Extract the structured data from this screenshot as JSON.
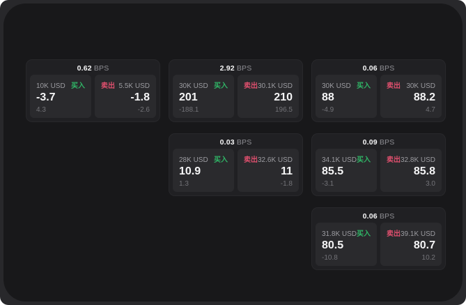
{
  "labels": {
    "bps_unit": "BPS",
    "buy": "买入",
    "sell": "卖出"
  },
  "colors": {
    "buy_green": "#30b566",
    "sell_red": "#dd4f6d",
    "surface_bg": "#18181a",
    "card_bg": "#202023",
    "panel_bg": "#2a2a2d",
    "value_text": "#f5f5f6",
    "muted_text": "#9b9ba0"
  },
  "cards": [
    {
      "row": 1,
      "col": 1,
      "bps": "0.62",
      "buy": {
        "notional": "10K USD",
        "value": "-3.7",
        "sub": "4.3"
      },
      "sell": {
        "notional": "5.5K USD",
        "value": "-1.8",
        "sub": "-2.6"
      }
    },
    {
      "row": 1,
      "col": 2,
      "bps": "2.92",
      "buy": {
        "notional": "30K USD",
        "value": "201",
        "sub": "-188.1"
      },
      "sell": {
        "notional": "30.1K USD",
        "value": "210",
        "sub": "196.5"
      }
    },
    {
      "row": 1,
      "col": 3,
      "bps": "0.06",
      "buy": {
        "notional": "30K USD",
        "value": "88",
        "sub": "-4.9"
      },
      "sell": {
        "notional": "30K USD",
        "value": "88.2",
        "sub": "4.7"
      }
    },
    {
      "row": 2,
      "col": 2,
      "bps": "0.03",
      "buy": {
        "notional": "28K USD",
        "value": "10.9",
        "sub": "1.3"
      },
      "sell": {
        "notional": "32.6K USD",
        "value": "11",
        "sub": "-1.8"
      }
    },
    {
      "row": 2,
      "col": 3,
      "bps": "0.09",
      "buy": {
        "notional": "34.1K USD",
        "value": "85.5",
        "sub": "-3.1"
      },
      "sell": {
        "notional": "32.8K USD",
        "value": "85.8",
        "sub": "3.0"
      }
    },
    {
      "row": 3,
      "col": 3,
      "bps": "0.06",
      "buy": {
        "notional": "31.8K USD",
        "value": "80.5",
        "sub": "-10.8"
      },
      "sell": {
        "notional": "39.1K USD",
        "value": "80.7",
        "sub": "10.2"
      }
    }
  ]
}
